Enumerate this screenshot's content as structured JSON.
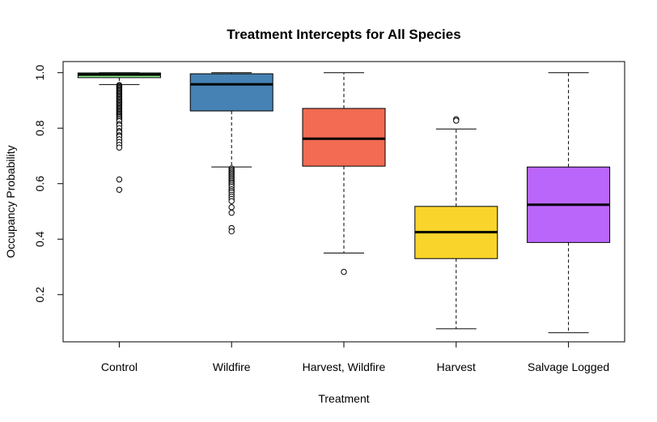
{
  "chart_data": {
    "type": "boxplot",
    "title": "Treatment Intercepts for All Species",
    "xlabel": "Treatment",
    "ylabel": "Occupancy Probability",
    "ylim": [
      0.03,
      1.04
    ],
    "yticks": [
      0.2,
      0.4,
      0.6,
      0.8,
      1.0
    ],
    "ytick_labels": [
      "0.2",
      "0.4",
      "0.6",
      "0.8",
      "1.0"
    ],
    "grid": false,
    "legend": "none",
    "categories": [
      "Control",
      "Wildfire",
      "Harvest, Wildfire",
      "Harvest",
      "Salvage Logged"
    ],
    "boxes": [
      {
        "category": "Control",
        "color": "#90ee90",
        "whisker_low": 0.957,
        "q1": 0.982,
        "median": 0.993,
        "q3": 0.999,
        "whisker_high": 1.0,
        "outliers": [
          0.955,
          0.952,
          0.948,
          0.944,
          0.94,
          0.936,
          0.932,
          0.928,
          0.924,
          0.92,
          0.916,
          0.912,
          0.908,
          0.904,
          0.9,
          0.896,
          0.892,
          0.888,
          0.884,
          0.88,
          0.876,
          0.872,
          0.868,
          0.864,
          0.86,
          0.856,
          0.852,
          0.848,
          0.844,
          0.84,
          0.835,
          0.83,
          0.825,
          0.815,
          0.81,
          0.8,
          0.79,
          0.785,
          0.775,
          0.77,
          0.76,
          0.75,
          0.74,
          0.73,
          0.615,
          0.578
        ]
      },
      {
        "category": "Wildfire",
        "color": "#4682b4",
        "whisker_low": 0.66,
        "q1": 0.862,
        "median": 0.958,
        "q3": 0.996,
        "whisker_high": 1.0,
        "outliers": [
          0.655,
          0.65,
          0.645,
          0.64,
          0.635,
          0.63,
          0.625,
          0.62,
          0.615,
          0.61,
          0.605,
          0.6,
          0.594,
          0.588,
          0.58,
          0.574,
          0.568,
          0.56,
          0.553,
          0.545,
          0.537,
          0.515,
          0.495,
          0.44,
          0.428
        ]
      },
      {
        "category": "Harvest, Wildfire",
        "color": "#f26b52",
        "whisker_low": 0.35,
        "q1": 0.663,
        "median": 0.762,
        "q3": 0.871,
        "whisker_high": 1.0,
        "outliers": [
          0.282
        ]
      },
      {
        "category": "Harvest",
        "color": "#f9d52b",
        "whisker_low": 0.077,
        "q1": 0.33,
        "median": 0.425,
        "q3": 0.518,
        "whisker_high": 0.797,
        "outliers": [
          0.832,
          0.827
        ]
      },
      {
        "category": "Salvage Logged",
        "color": "#bb66fb",
        "whisker_low": 0.063,
        "q1": 0.388,
        "median": 0.524,
        "q3": 0.66,
        "whisker_high": 1.0,
        "outliers": []
      }
    ]
  }
}
